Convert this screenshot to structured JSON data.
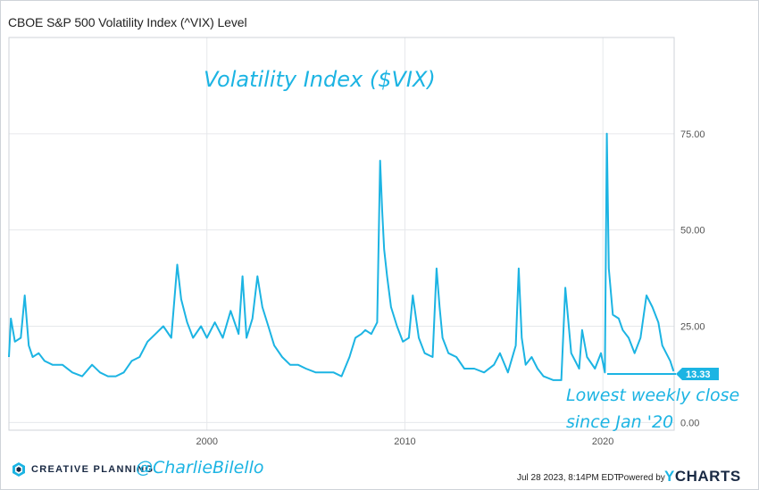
{
  "chart_data": {
    "type": "line",
    "title": "CBOE S&P 500 Volatility Index (^VIX) Level",
    "annotation_title": "Volatility Index ($VIX)",
    "annotation_note_line1": "Lowest weekly close",
    "annotation_note_line2": "since Jan '20",
    "last_value_label": "13.33",
    "last_value": 13.33,
    "y_ticks": [
      "0.00",
      "25.00",
      "50.00",
      "75.00"
    ],
    "y_tick_values": [
      0,
      25,
      50,
      75
    ],
    "x_ticks": [
      "2000",
      "2010",
      "2020"
    ],
    "x_tick_values": [
      2000,
      2010,
      2020
    ],
    "xlim": [
      1990.0,
      2023.6
    ],
    "ylim": [
      -2,
      100
    ],
    "grid": true,
    "series": [
      {
        "color": "#1cb4e3",
        "x": [
          1990.0,
          1990.1,
          1990.3,
          1990.6,
          1990.8,
          1991.0,
          1991.2,
          1991.5,
          1991.8,
          1992.2,
          1992.7,
          1993.2,
          1993.7,
          1994.2,
          1994.6,
          1995.0,
          1995.4,
          1995.8,
          1996.2,
          1996.6,
          1997.0,
          1997.4,
          1997.8,
          1998.2,
          1998.5,
          1998.7,
          1999.0,
          1999.3,
          1999.7,
          2000.0,
          2000.4,
          2000.8,
          2001.2,
          2001.6,
          2001.8,
          2002.0,
          2002.3,
          2002.55,
          2002.8,
          2003.1,
          2003.4,
          2003.8,
          2004.2,
          2004.6,
          2005.0,
          2005.5,
          2006.0,
          2006.4,
          2006.8,
          2007.2,
          2007.5,
          2007.8,
          2008.0,
          2008.3,
          2008.6,
          2008.75,
          2008.85,
          2008.95,
          2009.1,
          2009.3,
          2009.6,
          2009.9,
          2010.2,
          2010.4,
          2010.7,
          2011.0,
          2011.4,
          2011.6,
          2011.75,
          2011.9,
          2012.2,
          2012.6,
          2013.0,
          2013.5,
          2014.0,
          2014.5,
          2014.8,
          2015.2,
          2015.6,
          2015.75,
          2015.9,
          2016.1,
          2016.4,
          2016.7,
          2017.0,
          2017.5,
          2017.9,
          2018.1,
          2018.4,
          2018.8,
          2018.95,
          2019.2,
          2019.6,
          2019.9,
          2020.1,
          2020.2,
          2020.3,
          2020.5,
          2020.8,
          2021.0,
          2021.3,
          2021.6,
          2021.9,
          2022.2,
          2022.5,
          2022.8,
          2023.0,
          2023.2,
          2023.4,
          2023.57
        ],
        "y": [
          17,
          27,
          21,
          22,
          33,
          20,
          17,
          18,
          16,
          15,
          15,
          13,
          12,
          15,
          13,
          12,
          12,
          13,
          16,
          17,
          21,
          23,
          25,
          22,
          41,
          32,
          26,
          22,
          25,
          22,
          26,
          22,
          29,
          23,
          38,
          22,
          27,
          38,
          30,
          25,
          20,
          17,
          15,
          15,
          14,
          13,
          13,
          13,
          12,
          17,
          22,
          23,
          24,
          23,
          26,
          68,
          55,
          45,
          38,
          30,
          25,
          21,
          22,
          33,
          22,
          18,
          17,
          40,
          30,
          22,
          18,
          17,
          14,
          14,
          13,
          15,
          18,
          13,
          20,
          40,
          22,
          15,
          17,
          14,
          12,
          11,
          11,
          35,
          18,
          14,
          24,
          17,
          14,
          18,
          13,
          75,
          40,
          28,
          27,
          24,
          22,
          18,
          22,
          33,
          30,
          26,
          20,
          18,
          16,
          13.33
        ]
      }
    ]
  },
  "footer": {
    "brand": "CREATIVE PLANNING",
    "handle": "@CharlieBilello",
    "timestamp": "Jul 28 2023, 8:14PM EDT.",
    "powered_by": "Powered by",
    "logo_y": "Y",
    "logo_rest": "CHARTS"
  },
  "colors": {
    "accent": "#1cb4e3",
    "brand_dark": "#1a2a44"
  }
}
